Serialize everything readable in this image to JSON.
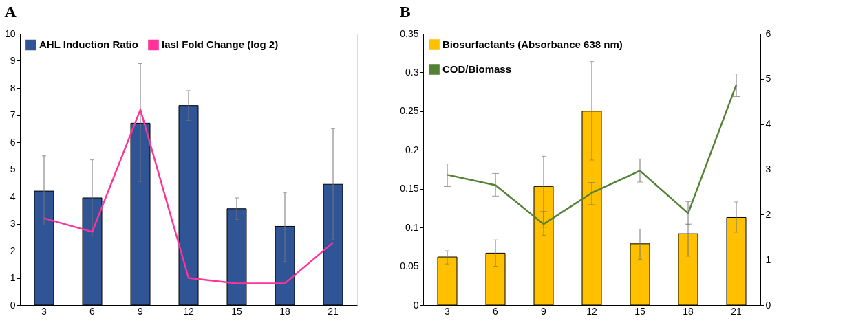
{
  "chart_data": [
    {
      "type": "bar",
      "title": "A",
      "categories": [
        "3",
        "6",
        "9",
        "12",
        "15",
        "18",
        "21"
      ],
      "ylim": [
        0,
        10
      ],
      "yticks": [
        0,
        1,
        2,
        3,
        4,
        5,
        6,
        7,
        8,
        9,
        10
      ],
      "legend": "top",
      "grid": false,
      "series": [
        {
          "name": "AHL Induction Ratio",
          "color": "#2f5597",
          "values": [
            4.2,
            3.95,
            6.7,
            7.35,
            3.55,
            2.9,
            4.45
          ],
          "errors": [
            [
              2.95,
              5.5
            ],
            [
              2.55,
              5.35
            ],
            [
              4.55,
              8.9
            ],
            [
              6.8,
              7.9
            ],
            [
              3.15,
              3.95
            ],
            [
              1.6,
              4.15
            ],
            [
              2.4,
              6.5
            ]
          ]
        },
        {
          "name": "lasI Fold Change (log 2)",
          "type": "line",
          "color": "#ff3399",
          "values": [
            3.2,
            2.7,
            7.2,
            1.0,
            0.8,
            0.8,
            2.3
          ]
        }
      ]
    },
    {
      "type": "bar",
      "title": "B",
      "categories": [
        "3",
        "6",
        "9",
        "12",
        "15",
        "18",
        "21"
      ],
      "ylim": [
        0,
        0.35
      ],
      "yticks": [
        0,
        0.05,
        0.1,
        0.15,
        0.2,
        0.25,
        0.3,
        0.35
      ],
      "y2lim": [
        0,
        6
      ],
      "y2ticks": [
        0,
        1,
        2,
        3,
        4,
        5,
        6
      ],
      "legend": "top left",
      "grid": false,
      "series": [
        {
          "name": "Biosurfactants (Absorbance 638 nm)",
          "color": "#ffc000",
          "values": [
            0.062,
            0.067,
            0.153,
            0.25,
            0.079,
            0.092,
            0.113
          ],
          "errors": [
            [
              0.053,
              0.07
            ],
            [
              0.05,
              0.084
            ],
            [
              0.09,
              0.192
            ],
            [
              0.187,
              0.314
            ],
            [
              0.059,
              0.098
            ],
            [
              0.063,
              0.104
            ],
            [
              0.094,
              0.133
            ]
          ]
        },
        {
          "name": "COD/Biomass",
          "type": "line",
          "axis": "y2",
          "color": "#548235",
          "values": [
            2.88,
            2.65,
            1.79,
            2.48,
            2.97,
            2.03,
            4.87
          ],
          "errors": [
            [
              2.62,
              3.12
            ],
            [
              2.41,
              2.91
            ],
            [
              1.72,
              2.07
            ],
            [
              2.22,
              2.71
            ],
            [
              2.72,
              3.23
            ],
            [
              1.79,
              2.29
            ],
            [
              4.61,
              5.11
            ]
          ]
        }
      ]
    }
  ]
}
